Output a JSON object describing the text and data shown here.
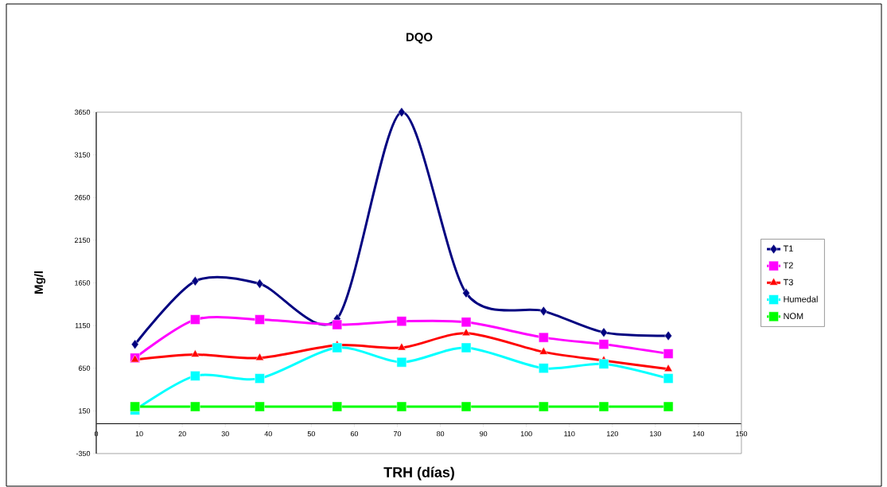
{
  "chart_data": {
    "type": "line",
    "title": "DQO",
    "xlabel": "TRH (días)",
    "ylabel": "Mg/l",
    "x": [
      9,
      23,
      38,
      56,
      71,
      86,
      104,
      118,
      133
    ],
    "xlim": [
      0,
      150
    ],
    "xticks": [
      0,
      10,
      20,
      30,
      40,
      50,
      60,
      70,
      80,
      90,
      100,
      110,
      120,
      130,
      140,
      150
    ],
    "ylim": [
      -350,
      3650
    ],
    "yticks": [
      -350,
      150,
      650,
      1150,
      1650,
      2150,
      2650,
      3150,
      3650
    ],
    "grid": false,
    "legend": "right",
    "series": [
      {
        "name": "T1",
        "color": "#000080",
        "marker": "diamond",
        "values": [
          930,
          1670,
          1640,
          1230,
          3650,
          1530,
          1320,
          1070,
          1030
        ]
      },
      {
        "name": "T2",
        "color": "#ff00ff",
        "marker": "square",
        "values": [
          770,
          1220,
          1220,
          1160,
          1200,
          1190,
          1010,
          930,
          820
        ]
      },
      {
        "name": "T3",
        "color": "#ff0000",
        "marker": "triangle",
        "values": [
          750,
          810,
          770,
          920,
          890,
          1060,
          840,
          740,
          640
        ]
      },
      {
        "name": "Humedal",
        "color": "#00ffff",
        "marker": "square",
        "values": [
          160,
          560,
          530,
          890,
          720,
          890,
          650,
          700,
          530
        ]
      },
      {
        "name": "NOM",
        "color": "#00ff00",
        "marker": "square",
        "values": [
          200,
          200,
          200,
          200,
          200,
          200,
          200,
          200,
          200
        ]
      }
    ]
  }
}
